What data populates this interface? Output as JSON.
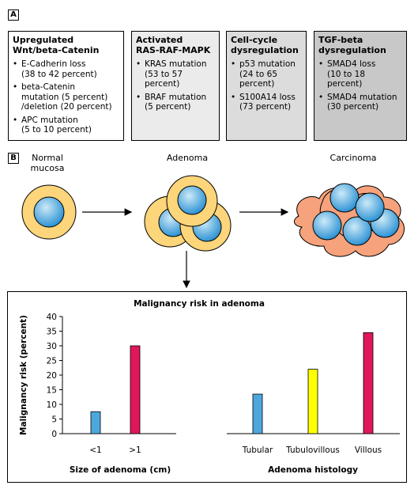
{
  "panel_a": {
    "label": "A",
    "boxes": [
      {
        "title_line1": "Upregulated",
        "title_line2": "Wnt/beta-Catenin",
        "bullets": [
          [
            "E-Cadherin loss",
            "(38 to 42 percent)"
          ],
          [
            "beta-Catenin",
            "mutation (5 percent)",
            "/deletion (20 percent)"
          ],
          [
            "APC mutation",
            "(5 to 10 percent)"
          ]
        ],
        "bg": "#ffffff"
      },
      {
        "title_line1": "Activated",
        "title_line2": "RAS-RAF-MAPK",
        "bullets": [
          [
            "KRAS mutation",
            "(53 to 57",
            "percent)"
          ],
          [
            "BRAF mutation",
            "(5 percent)"
          ]
        ],
        "bg": "#ebebeb"
      },
      {
        "title_line1": "Cell-cycle",
        "title_line2": "dysregulation",
        "bullets": [
          [
            "p53 mutation",
            "(24 to 65",
            "percent)"
          ],
          [
            "S100A14 loss",
            "(73 percent)"
          ]
        ],
        "bg": "#dcdcdc"
      },
      {
        "title_line1": "TGF-beta",
        "title_line2": "dysregulation",
        "bullets": [
          [
            "SMAD4 loss",
            "(10 to 18",
            "percent)"
          ],
          [
            "SMAD4 mutation",
            "(30 percent)"
          ]
        ],
        "bg": "#c8c8c8"
      }
    ]
  },
  "panel_b": {
    "label": "B",
    "stages": {
      "normal_line1": "Normal",
      "normal_line2": "mucosa",
      "adenoma": "Adenoma",
      "carcinoma": "Carcinoma"
    }
  },
  "colors": {
    "cell_outer": "#fdd57a",
    "cell_outer_stroke": "#000000",
    "nucleus_light": "#cdeaf8",
    "nucleus_dark": "#2e93d4",
    "carcinoma_cell": "#f6a27c",
    "bar_blue": "#4da7dc",
    "bar_red": "#e0175a",
    "bar_yellow": "#ffff00"
  },
  "chart_section_title": "Malignancy risk in adenoma",
  "chart_data": [
    {
      "type": "bar",
      "title": "",
      "xlabel": "Size of adenoma (cm)",
      "ylabel": "Malignancy risk (percent)",
      "ylim": [
        0,
        40
      ],
      "yticks": [
        0,
        5,
        10,
        15,
        20,
        25,
        30,
        35,
        40
      ],
      "categories": [
        "<1",
        ">1"
      ],
      "values": [
        7.5,
        30
      ],
      "bar_colors": [
        "#4da7dc",
        "#e0175a"
      ],
      "grid": false
    },
    {
      "type": "bar",
      "title": "",
      "xlabel": "Adenoma histology",
      "ylabel": "",
      "ylim": [
        0,
        40
      ],
      "categories": [
        "Tubular",
        "Tubulovillous",
        "Villous"
      ],
      "values": [
        13.5,
        22,
        34.5
      ],
      "bar_colors": [
        "#4da7dc",
        "#ffff00",
        "#e0175a"
      ],
      "grid": false
    }
  ]
}
